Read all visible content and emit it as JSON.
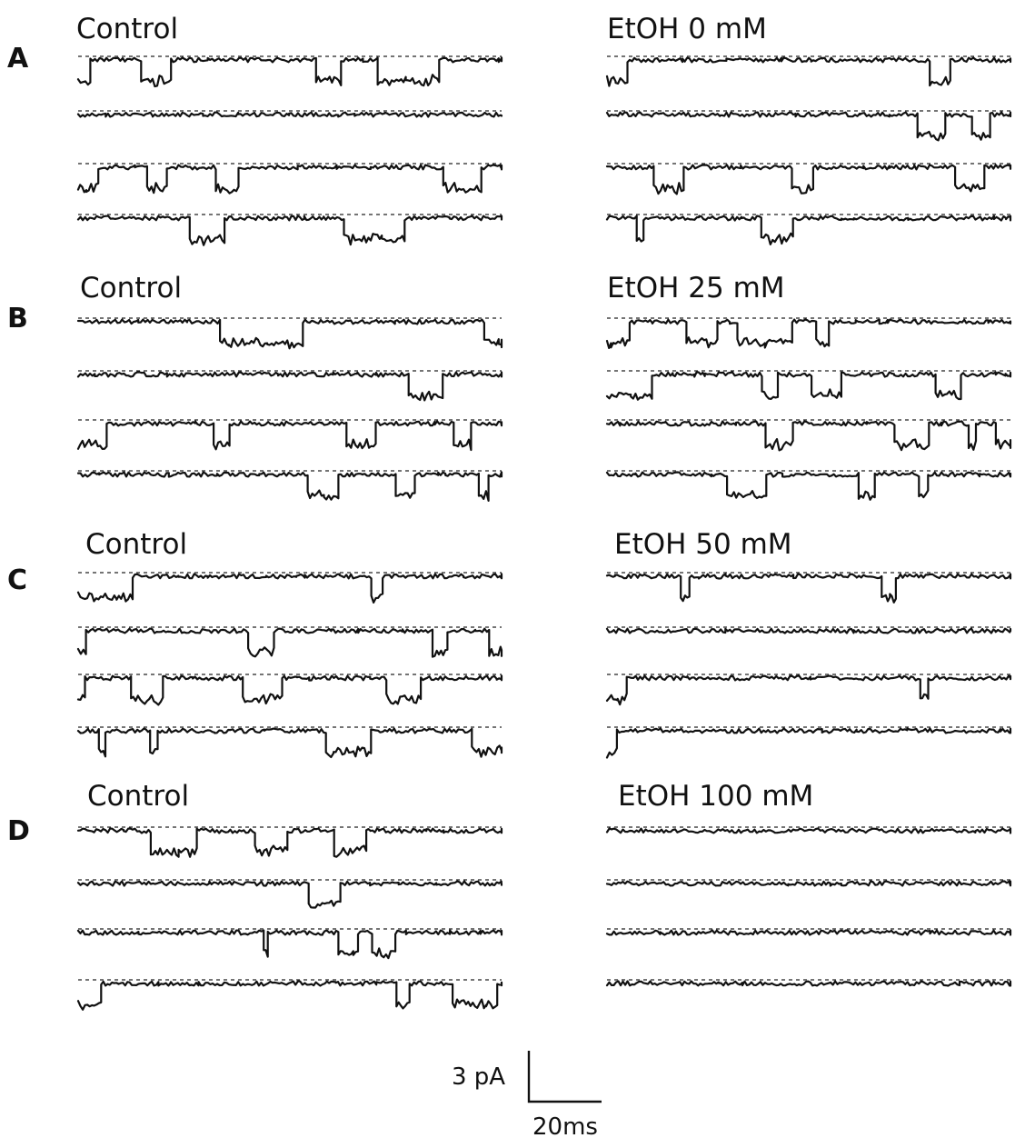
{
  "chart_data": {
    "type": "line",
    "description_kind": "single-channel current recordings",
    "panels": [
      {
        "letter": "A",
        "left": "Control",
        "right": "EtOH 0 mM",
        "right_activity": 1.0
      },
      {
        "letter": "B",
        "left": "Control",
        "right": "EtOH 25 mM",
        "right_activity": 1.2
      },
      {
        "letter": "C",
        "left": "Control",
        "right": "EtOH 50 mM",
        "right_activity": 0.45
      },
      {
        "letter": "D",
        "left": "Control",
        "right": "EtOH 100 mM",
        "right_activity": 0.12
      }
    ],
    "traces_per_column": 4,
    "scale_bar": {
      "current": "3 pA",
      "time": "20ms"
    }
  }
}
